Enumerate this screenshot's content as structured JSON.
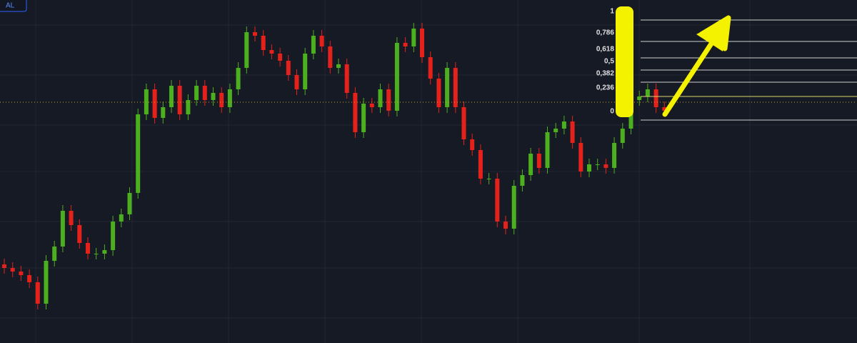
{
  "button": "AL",
  "chart_data": {
    "type": "candlestick",
    "ylim": [
      0,
      480
    ],
    "up_color": "#4caf1e",
    "down_color": "#e4211b",
    "open": [
      110,
      105,
      100,
      95,
      85,
      55,
      115,
      135,
      185,
      165,
      140,
      125,
      125,
      130,
      170,
      180,
      210,
      320,
      355,
      315,
      330,
      360,
      320,
      340,
      360,
      340,
      350,
      330,
      355,
      385,
      435,
      430,
      410,
      405,
      395,
      375,
      355,
      405,
      430,
      415,
      385,
      390,
      350,
      295,
      335,
      330,
      355,
      325,
      420,
      415,
      440,
      400,
      370,
      330,
      385,
      330,
      285,
      270,
      230,
      230,
      170,
      160,
      220,
      235,
      265,
      245,
      295,
      300,
      310,
      280,
      240,
      250,
      250,
      245,
      280,
      300,
      340,
      345,
      355,
      330
    ],
    "high": [
      118,
      113,
      108,
      103,
      93,
      123,
      143,
      193,
      193,
      173,
      148,
      133,
      138,
      178,
      188,
      218,
      328,
      363,
      363,
      338,
      368,
      368,
      348,
      368,
      368,
      358,
      358,
      363,
      393,
      443,
      443,
      438,
      418,
      413,
      403,
      383,
      413,
      438,
      438,
      423,
      398,
      398,
      358,
      343,
      343,
      363,
      363,
      428,
      428,
      448,
      448,
      408,
      378,
      393,
      393,
      338,
      293,
      278,
      238,
      238,
      178,
      228,
      243,
      273,
      273,
      303,
      308,
      318,
      318,
      288,
      258,
      258,
      258,
      288,
      308,
      348,
      353,
      363,
      363,
      338
    ],
    "low": [
      97,
      92,
      87,
      77,
      47,
      47,
      107,
      127,
      157,
      132,
      117,
      117,
      117,
      122,
      162,
      172,
      202,
      312,
      307,
      307,
      322,
      312,
      312,
      332,
      332,
      332,
      322,
      322,
      347,
      377,
      422,
      402,
      397,
      387,
      367,
      347,
      347,
      397,
      407,
      377,
      377,
      342,
      287,
      287,
      322,
      322,
      317,
      317,
      407,
      407,
      392,
      362,
      322,
      322,
      322,
      277,
      262,
      222,
      222,
      162,
      152,
      152,
      212,
      227,
      237,
      237,
      287,
      292,
      272,
      232,
      232,
      242,
      237,
      237,
      272,
      292,
      332,
      337,
      322,
      317
    ],
    "close": [
      105,
      100,
      95,
      85,
      55,
      115,
      135,
      185,
      165,
      140,
      125,
      125,
      130,
      170,
      180,
      210,
      320,
      355,
      315,
      330,
      360,
      320,
      340,
      360,
      340,
      350,
      330,
      355,
      385,
      435,
      430,
      410,
      405,
      395,
      375,
      355,
      405,
      430,
      415,
      385,
      390,
      350,
      295,
      335,
      330,
      355,
      325,
      420,
      415,
      440,
      400,
      370,
      330,
      385,
      330,
      285,
      270,
      230,
      230,
      170,
      160,
      220,
      235,
      265,
      245,
      295,
      300,
      310,
      280,
      240,
      250,
      250,
      245,
      280,
      300,
      340,
      345,
      355,
      330,
      325
    ],
    "price_line": 337,
    "fib_levels": [
      {
        "value": 452,
        "label": "1 ("
      },
      {
        "value": 422,
        "label": "0,786 ("
      },
      {
        "value": 399,
        "label": "0,618 ("
      },
      {
        "value": 382,
        "label": "0,5 ("
      },
      {
        "value": 365,
        "label": "0,382 ("
      },
      {
        "value": 345,
        "label": "0,236 ("
      },
      {
        "value": 312,
        "label": "0 ("
      }
    ]
  }
}
